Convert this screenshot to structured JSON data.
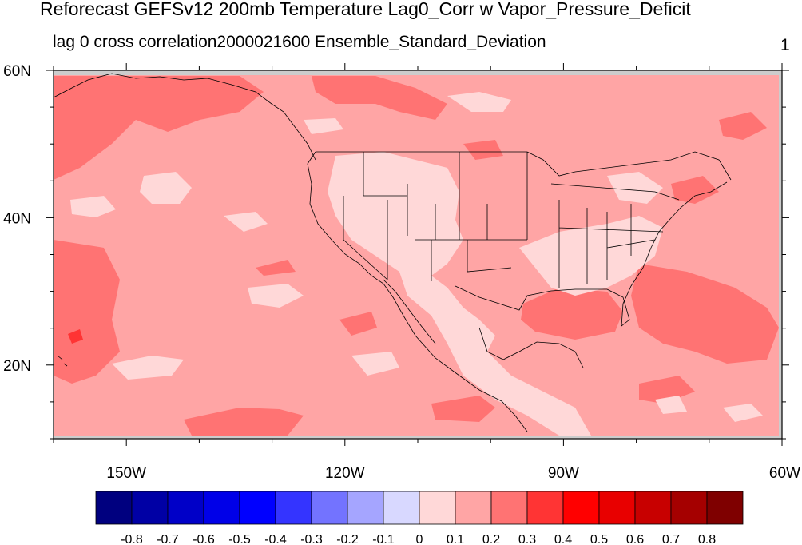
{
  "title": "Reforecast GEFSv12 200mb Temperature Lag0_Corr w Vapor_Pressure_Deficit",
  "subtitle_left": "lag 0 cross correlation2000021600 Ensemble_Standard_Deviation",
  "subtitle_right": "1",
  "map": {
    "lat_labels": [
      "60N",
      "40N",
      "20N"
    ],
    "lon_labels": [
      "150W",
      "120W",
      "90W",
      "60W"
    ],
    "lat_range": [
      10,
      60
    ],
    "lon_range": [
      -160,
      -60
    ],
    "background_color": "#ffa5a5"
  },
  "colorbar": {
    "labels": [
      "-0.8",
      "-0.7",
      "-0.6",
      "-0.5",
      "-0.4",
      "-0.3",
      "-0.2",
      "-0.1",
      "0",
      "0.1",
      "0.2",
      "0.3",
      "0.4",
      "0.5",
      "0.6",
      "0.7",
      "0.8"
    ],
    "colors": [
      "#00007f",
      "#0000a5",
      "#0000c8",
      "#0000e8",
      "#0000ff",
      "#3434ff",
      "#7373ff",
      "#a5a5ff",
      "#d8d8ff",
      "#ffd8d8",
      "#ffa5a5",
      "#ff7373",
      "#ff3434",
      "#ff0000",
      "#e80000",
      "#c80000",
      "#a50000",
      "#7f0000"
    ]
  }
}
